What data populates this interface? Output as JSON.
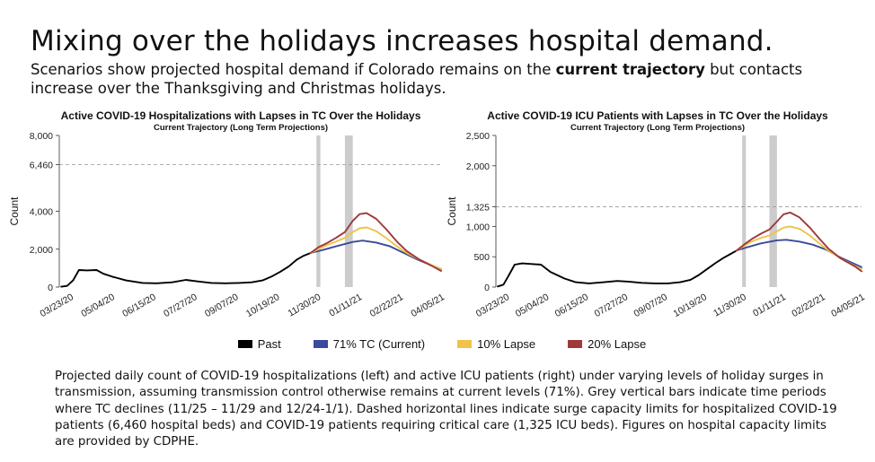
{
  "slide": {
    "title": "Mixing over the holidays increases hospital demand.",
    "subtitle_part1": "Scenarios show projected hospital demand if Colorado remains on the ",
    "subtitle_bold": "current trajectory",
    "subtitle_part2": " but contacts increase over the Thanksgiving and Christmas holidays.",
    "caption": "Projected daily count of COVID-19 hospitalizations (left) and active ICU patients (right) under varying levels of holiday surges in transmission, assuming transmission control otherwise remains at current levels (71%). Grey vertical bars indicate time periods where TC declines (11/25 – 11/29 and 12/24-1/1). Dashed horizontal lines indicate surge capacity limits for hospitalized COVID-19 patients (6,460 hospital beds) and COVID-19 patients requiring critical care (1,325 ICU beds). Figures on hospital capacity limits are provided by CDPHE."
  },
  "legend": [
    {
      "label": "Past",
      "color": "#000000"
    },
    {
      "label": "71% TC (Current)",
      "color": "#3b4a9c"
    },
    {
      "label": "10% Lapse",
      "color": "#f0c24a"
    },
    {
      "label": "20% Lapse",
      "color": "#9e3a3a"
    }
  ],
  "chart_data": [
    {
      "type": "line",
      "title": "Active COVID-19 Hospitalizations with Lapses in TC Over the Holidays",
      "subtitle": "Current Trajectory (Long Term Projections)",
      "xlabel": "",
      "ylabel": "Count",
      "x_tick_labels": [
        "03/23/20",
        "05/04/20",
        "06/15/20",
        "07/27/20",
        "09/07/20",
        "10/19/20",
        "11/30/20",
        "01/11/21",
        "02/22/21",
        "04/05/21"
      ],
      "x_range": [
        "03/08/20",
        "04/01/21"
      ],
      "y_ticks": [
        0,
        2000,
        4000,
        6460,
        8000
      ],
      "y_tick_labels": [
        "0",
        "2,000",
        "4,000",
        "6,460",
        "8,000"
      ],
      "ylim": [
        0,
        8000
      ],
      "capacity_line": 6460,
      "shaded_periods": [
        [
          "11/25/20",
          "11/29/20"
        ],
        [
          "12/24/20",
          "01/01/21"
        ]
      ],
      "series": [
        {
          "name": "Past",
          "color": "#000000",
          "x": [
            "03/10/20",
            "03/16/20",
            "03/22/20",
            "03/28/20",
            "04/05/20",
            "04/15/20",
            "04/22/20",
            "05/01/20",
            "05/15/20",
            "06/01/20",
            "06/15/20",
            "07/01/20",
            "07/15/20",
            "07/27/20",
            "08/10/20",
            "08/25/20",
            "09/07/20",
            "09/20/20",
            "10/01/20",
            "10/10/20",
            "10/19/20",
            "10/28/20",
            "11/05/20",
            "11/12/20",
            "11/19/20"
          ],
          "y": [
            20,
            60,
            350,
            900,
            880,
            900,
            700,
            550,
            350,
            220,
            200,
            250,
            380,
            300,
            220,
            200,
            220,
            250,
            350,
            550,
            800,
            1100,
            1450,
            1650,
            1800
          ]
        },
        {
          "name": "71% TC (Current)",
          "color": "#3b4a9c",
          "x": [
            "11/19/20",
            "12/01/20",
            "12/15/20",
            "01/01/21",
            "01/11/21",
            "01/25/21",
            "02/08/21",
            "02/22/21",
            "03/08/21",
            "03/22/21",
            "04/01/21"
          ],
          "y": [
            1800,
            1950,
            2150,
            2380,
            2450,
            2350,
            2150,
            1800,
            1450,
            1150,
            950
          ]
        },
        {
          "name": "10% Lapse",
          "color": "#f0c24a",
          "x": [
            "11/19/20",
            "11/27/20",
            "12/05/20",
            "12/15/20",
            "12/24/20",
            "01/01/21",
            "01/08/21",
            "01/15/21",
            "01/25/21",
            "02/05/21",
            "02/15/21",
            "02/25/21",
            "03/10/21",
            "03/25/21",
            "04/01/21"
          ],
          "y": [
            1800,
            2000,
            2200,
            2400,
            2600,
            2900,
            3100,
            3150,
            2950,
            2550,
            2150,
            1800,
            1450,
            1100,
            950
          ]
        },
        {
          "name": "20% Lapse",
          "color": "#9e3a3a",
          "x": [
            "11/19/20",
            "11/27/20",
            "12/05/20",
            "12/15/20",
            "12/24/20",
            "01/01/21",
            "01/08/21",
            "01/15/21",
            "01/25/21",
            "02/05/21",
            "02/15/21",
            "02/25/21",
            "03/10/21",
            "03/25/21",
            "04/01/21"
          ],
          "y": [
            1800,
            2100,
            2300,
            2600,
            2900,
            3500,
            3850,
            3900,
            3600,
            3000,
            2400,
            1900,
            1450,
            1050,
            850
          ]
        }
      ]
    },
    {
      "type": "line",
      "title": "Active COVID-19 ICU Patients with Lapses in TC Over the Holidays",
      "subtitle": "Current Trajectory (Long Term Projections)",
      "xlabel": "",
      "ylabel": "Count",
      "x_tick_labels": [
        "03/23/20",
        "05/04/20",
        "06/15/20",
        "07/27/20",
        "09/07/20",
        "10/19/20",
        "11/30/20",
        "01/11/21",
        "02/22/21",
        "04/05/21"
      ],
      "x_range": [
        "03/08/20",
        "04/01/21"
      ],
      "y_ticks": [
        0,
        500,
        1000,
        1325,
        2000,
        2500
      ],
      "y_tick_labels": [
        "0",
        "500",
        "1,000",
        "1,325",
        "2,000",
        "2,500"
      ],
      "ylim": [
        0,
        2500
      ],
      "capacity_line": 1325,
      "shaded_periods": [
        [
          "11/25/20",
          "11/29/20"
        ],
        [
          "12/24/20",
          "01/01/21"
        ]
      ],
      "series": [
        {
          "name": "Past",
          "color": "#000000",
          "x": [
            "03/10/20",
            "03/16/20",
            "03/22/20",
            "03/28/20",
            "04/05/20",
            "04/15/20",
            "04/25/20",
            "05/05/20",
            "05/20/20",
            "06/01/20",
            "06/15/20",
            "07/01/20",
            "07/15/20",
            "07/27/20",
            "08/10/20",
            "08/25/20",
            "09/07/20",
            "09/20/20",
            "10/01/20",
            "10/10/20",
            "10/19/20",
            "10/28/20",
            "11/05/20",
            "11/12/20",
            "11/19/20"
          ],
          "y": [
            10,
            40,
            200,
            370,
            390,
            380,
            370,
            250,
            140,
            80,
            60,
            80,
            100,
            90,
            70,
            60,
            60,
            80,
            120,
            200,
            300,
            400,
            480,
            540,
            600
          ]
        },
        {
          "name": "71% TC (Current)",
          "color": "#3b4a9c",
          "x": [
            "11/19/20",
            "12/01/20",
            "12/15/20",
            "01/01/21",
            "01/11/21",
            "01/25/21",
            "02/08/21",
            "02/22/21",
            "03/08/21",
            "03/22/21",
            "04/01/21"
          ],
          "y": [
            600,
            660,
            720,
            770,
            780,
            750,
            700,
            620,
            500,
            400,
            330
          ]
        },
        {
          "name": "10% Lapse",
          "color": "#f0c24a",
          "x": [
            "11/19/20",
            "11/27/20",
            "12/05/20",
            "12/15/20",
            "12/24/20",
            "01/01/21",
            "01/08/21",
            "01/15/21",
            "01/25/21",
            "02/05/21",
            "02/15/21",
            "02/25/21",
            "03/10/21",
            "03/25/21",
            "04/01/21"
          ],
          "y": [
            600,
            680,
            750,
            810,
            850,
            920,
            980,
            1000,
            960,
            850,
            720,
            600,
            470,
            350,
            300
          ]
        },
        {
          "name": "20% Lapse",
          "color": "#9e3a3a",
          "x": [
            "11/19/20",
            "11/27/20",
            "12/05/20",
            "12/15/20",
            "12/24/20",
            "01/01/21",
            "01/08/21",
            "01/15/21",
            "01/25/21",
            "02/05/21",
            "02/15/21",
            "02/25/21",
            "03/10/21",
            "03/25/21",
            "04/01/21"
          ],
          "y": [
            600,
            700,
            790,
            880,
            950,
            1080,
            1200,
            1230,
            1150,
            980,
            800,
            630,
            470,
            340,
            260
          ]
        }
      ]
    }
  ]
}
